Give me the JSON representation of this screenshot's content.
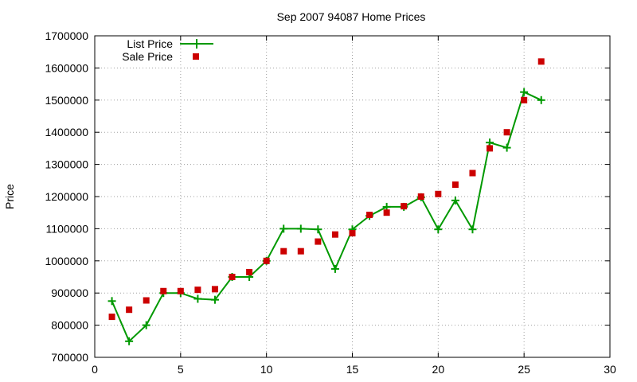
{
  "chart_data": {
    "type": "line",
    "title": "Sep 2007 94087 Home Prices",
    "xlabel": "",
    "ylabel": "Price",
    "xlim": [
      0,
      30
    ],
    "ylim": [
      700000,
      1700000
    ],
    "x_ticks": [
      0,
      5,
      10,
      15,
      20,
      25,
      30
    ],
    "y_ticks": [
      700000,
      800000,
      900000,
      1000000,
      1100000,
      1200000,
      1300000,
      1400000,
      1500000,
      1600000,
      1700000
    ],
    "grid": true,
    "legend_position": "top-left",
    "series": [
      {
        "name": "List Price",
        "style": "line-with-plus-markers",
        "color": "#009900",
        "x": [
          1,
          2,
          3,
          4,
          5,
          6,
          7,
          8,
          9,
          10,
          11,
          12,
          13,
          14,
          15,
          16,
          17,
          18,
          19,
          20,
          21,
          22,
          23,
          24,
          25,
          26
        ],
        "values": [
          875000,
          750000,
          800000,
          900000,
          900000,
          882000,
          879000,
          950000,
          950000,
          1000000,
          1100000,
          1100000,
          1098000,
          975000,
          1098000,
          1140000,
          1168000,
          1168000,
          1198000,
          1098000,
          1188000,
          1098000,
          1368000,
          1352000,
          1525000,
          1500000
        ]
      },
      {
        "name": "Sale Price",
        "style": "square-markers",
        "color": "#cc0000",
        "x": [
          1,
          2,
          3,
          4,
          5,
          6,
          7,
          8,
          9,
          10,
          11,
          12,
          13,
          14,
          15,
          16,
          17,
          18,
          19,
          20,
          21,
          22,
          23,
          24,
          25,
          26
        ],
        "values": [
          826000,
          848000,
          877000,
          906000,
          906000,
          910000,
          912000,
          950000,
          965000,
          1000000,
          1030000,
          1030000,
          1060000,
          1082000,
          1086000,
          1143000,
          1150000,
          1170000,
          1200000,
          1208000,
          1237000,
          1273000,
          1350000,
          1400000,
          1500000,
          1620000
        ]
      }
    ]
  }
}
